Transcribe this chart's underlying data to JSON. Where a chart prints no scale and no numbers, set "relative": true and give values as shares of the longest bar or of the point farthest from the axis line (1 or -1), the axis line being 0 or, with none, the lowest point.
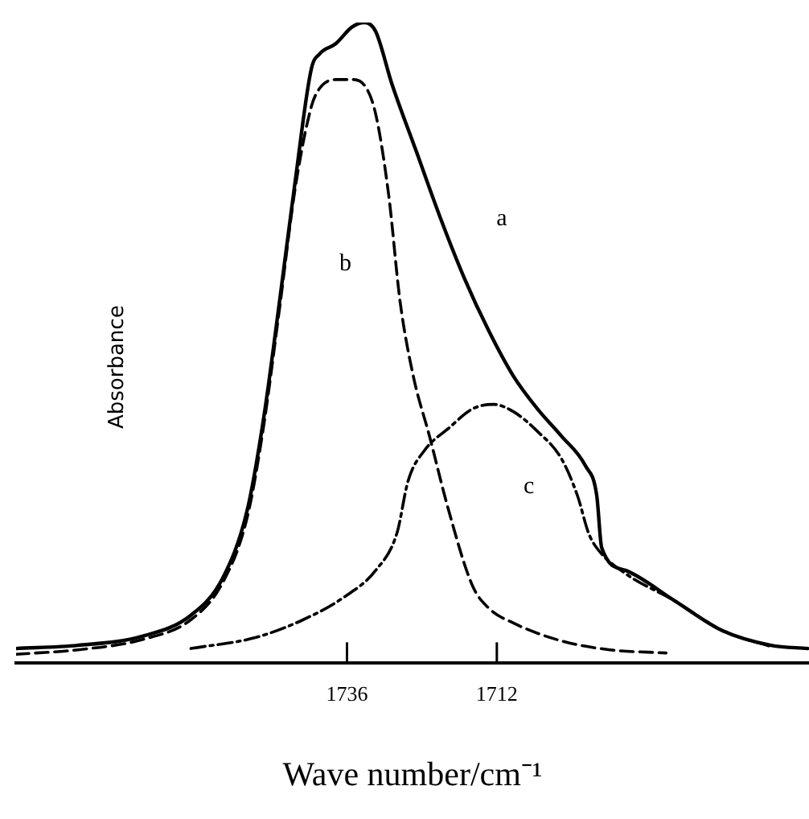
{
  "chart_data": {
    "type": "line",
    "xlabel": "Wave number/cm⁻¹",
    "ylabel": "Absorbance",
    "relative": true,
    "xlim": [
      1789,
      1662
    ],
    "xticks": [
      1736,
      1712
    ],
    "grid": false,
    "legend": false,
    "marker": "none",
    "series": [
      {
        "name": "a",
        "color": "#000000",
        "line_style": "solid",
        "x": [
          1789,
          1779.1,
          1768.8,
          1761,
          1755.9,
          1752,
          1749.4,
          1746.8,
          1744.3,
          1741.7,
          1740.4,
          1737.8,
          1735.2,
          1733.2,
          1731.4,
          1728.8,
          1724.9,
          1721,
          1717.2,
          1713.3,
          1709.4,
          1705.5,
          1701.7,
          1697.8,
          1696,
          1695.2,
          1691.4,
          1683.6,
          1675.9,
          1668.1,
          1662.2
        ],
        "values": [
          0.023,
          0.028,
          0.042,
          0.075,
          0.133,
          0.238,
          0.379,
          0.565,
          0.752,
          0.928,
          0.951,
          0.967,
          0.993,
          1,
          0.986,
          0.904,
          0.799,
          0.694,
          0.601,
          0.519,
          0.449,
          0.397,
          0.355,
          0.308,
          0.262,
          0.18,
          0.145,
          0.098,
          0.051,
          0.028,
          0.023
        ]
      },
      {
        "name": "b",
        "color": "#000000",
        "line_style": "dashed",
        "x": [
          1789,
          1779.1,
          1768.8,
          1761,
          1755.9,
          1752,
          1749.4,
          1746.8,
          1744.3,
          1741.7,
          1740.4,
          1737.8,
          1735.2,
          1733.2,
          1731.4,
          1729.3,
          1727.5,
          1725.4,
          1722.8,
          1719.7,
          1715.9,
          1713.3,
          1709.4,
          1701.7,
          1693.9,
          1684.9
        ],
        "values": [
          0.014,
          0.021,
          0.037,
          0.068,
          0.126,
          0.227,
          0.367,
          0.554,
          0.741,
          0.869,
          0.897,
          0.911,
          0.911,
          0.902,
          0.857,
          0.729,
          0.565,
          0.449,
          0.355,
          0.238,
          0.121,
          0.086,
          0.063,
          0.035,
          0.021,
          0.016
        ]
      },
      {
        "name": "c",
        "color": "#000000",
        "line_style": "dashdot",
        "x": [
          1761,
          1750.7,
          1743,
          1736.5,
          1731.4,
          1728,
          1726.2,
          1723.6,
          1719.7,
          1715.9,
          1712.5,
          1709.4,
          1705.5,
          1701.7,
          1699.1,
          1697.3,
          1696,
          1691.4,
          1683.6,
          1675.9,
          1668.1
        ],
        "values": [
          0.023,
          0.04,
          0.068,
          0.103,
          0.145,
          0.203,
          0.285,
          0.332,
          0.367,
          0.397,
          0.404,
          0.393,
          0.362,
          0.32,
          0.262,
          0.203,
          0.18,
          0.14,
          0.098,
          0.051,
          0.026
        ]
      }
    ]
  }
}
